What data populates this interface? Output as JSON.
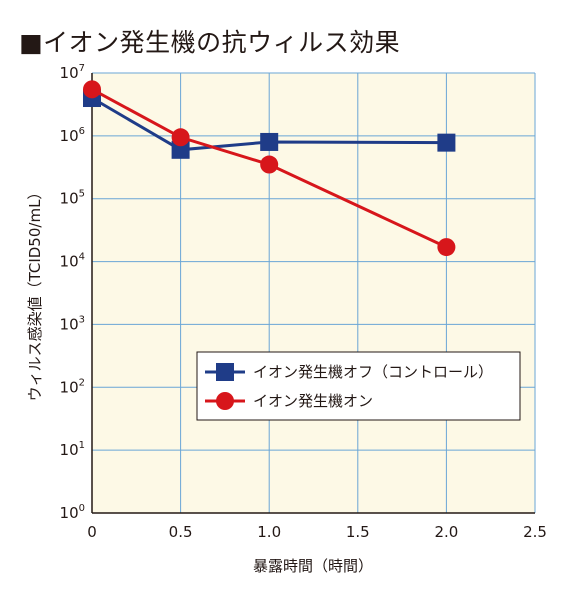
{
  "title": "■イオン発生機の抗ウィルス効果",
  "chart_data": {
    "type": "line",
    "title": "■イオン発生機の抗ウィルス効果",
    "xlabel": "暴露時間（時間）",
    "ylabel": "ウィルス感染値（TCID50/mL）",
    "x_scale": "linear",
    "y_scale": "log",
    "xlim": [
      0,
      2.5
    ],
    "ylim": [
      1,
      10000000
    ],
    "x_ticks": [
      "0",
      "0.5",
      "1.0",
      "1.5",
      "2.0",
      "2.5"
    ],
    "y_ticks": [
      {
        "base": "10",
        "exp": "0",
        "value": 1
      },
      {
        "base": "10",
        "exp": "1",
        "value": 10
      },
      {
        "base": "10",
        "exp": "2",
        "value": 100
      },
      {
        "base": "10",
        "exp": "3",
        "value": 1000
      },
      {
        "base": "10",
        "exp": "4",
        "value": 10000
      },
      {
        "base": "10",
        "exp": "5",
        "value": 100000
      },
      {
        "base": "10",
        "exp": "6",
        "value": 1000000
      },
      {
        "base": "10",
        "exp": "7",
        "value": 10000000
      }
    ],
    "grid": true,
    "background": "#fdf9e6",
    "grid_color": "#6aa6d6",
    "legend_position": "lower-right",
    "series": [
      {
        "name": "イオン発生機オフ（コントロール）",
        "color": "#1f3c88",
        "marker": "square",
        "x": [
          0,
          0.5,
          1.0,
          2.0
        ],
        "y": [
          4000000,
          600000,
          800000,
          780000
        ]
      },
      {
        "name": "イオン発生機オン",
        "color": "#d7161b",
        "marker": "circle",
        "x": [
          0,
          0.5,
          1.0,
          2.0
        ],
        "y": [
          5500000,
          950000,
          350000,
          17000
        ]
      }
    ]
  }
}
